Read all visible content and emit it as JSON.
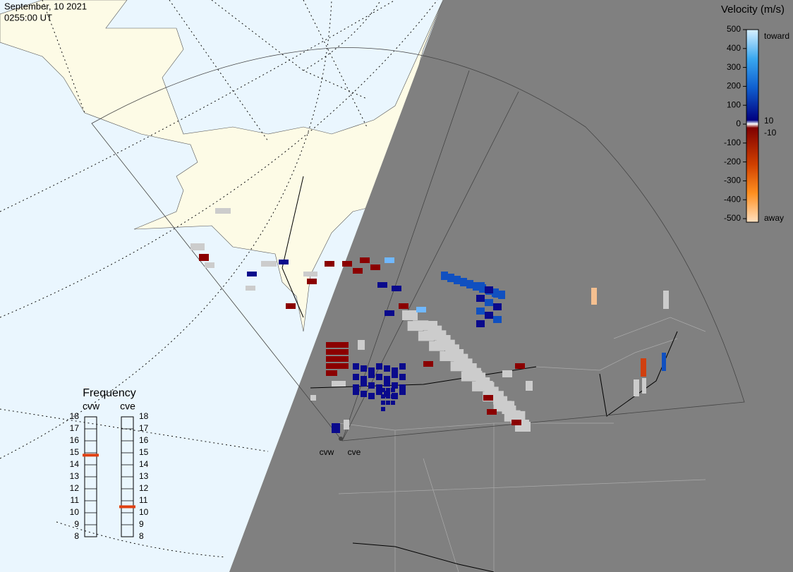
{
  "header": {
    "date": "September, 10 2021",
    "time": "0255:00 UT"
  },
  "velocity_scale": {
    "title": "Velocity (m/s)",
    "range": [
      -500,
      500
    ],
    "ticks": [
      500,
      400,
      300,
      200,
      100,
      0,
      -100,
      -200,
      -300,
      -400,
      -500
    ],
    "toward": "toward",
    "away": "away",
    "inner_top": "10",
    "inner_bottom": "-10"
  },
  "frequency": {
    "title": "Frequency",
    "range": [
      8,
      18
    ],
    "ticks": [
      18,
      17,
      16,
      15,
      14,
      13,
      12,
      11,
      10,
      9,
      8
    ],
    "radars": [
      {
        "name": "cvw",
        "value": 14.8
      },
      {
        "name": "cve",
        "value": 10.5
      }
    ]
  },
  "sites": [
    "cvw",
    "cve"
  ]
}
